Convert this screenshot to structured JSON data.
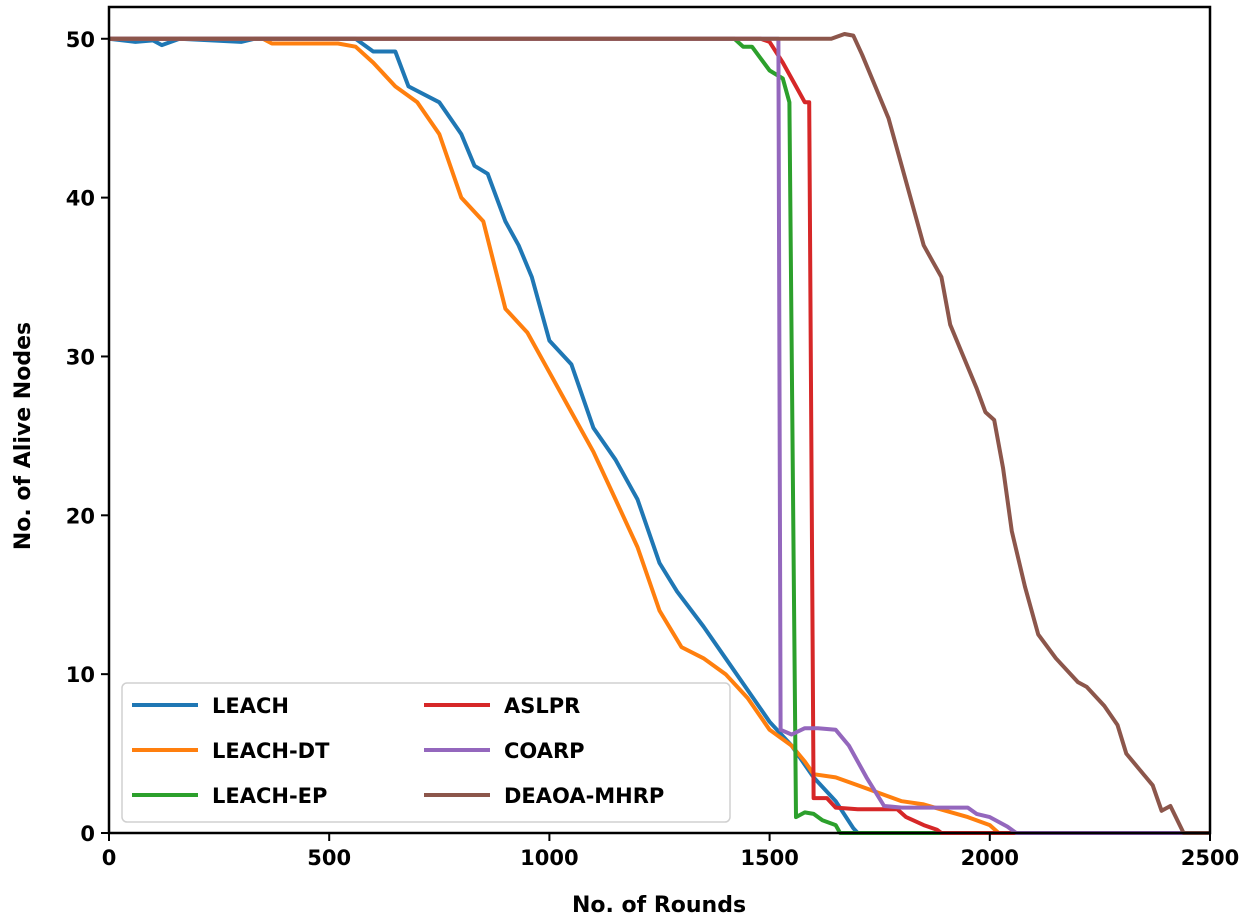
{
  "chart_data": {
    "type": "line",
    "title": "",
    "xlabel": "No. of Rounds",
    "ylabel": "No. of Alive Nodes",
    "xlim": [
      0,
      2500
    ],
    "ylim": [
      0,
      52
    ],
    "xticks": [
      0,
      500,
      1000,
      1500,
      2000,
      2500
    ],
    "yticks": [
      0,
      10,
      20,
      30,
      40,
      50
    ],
    "grid": false,
    "legend_position": "lower-left",
    "legend_columns": 2,
    "series": [
      {
        "name": "LEACH",
        "color": "#1f77b4",
        "x": [
          0,
          60,
          100,
          120,
          160,
          300,
          330,
          560,
          600,
          650,
          680,
          750,
          800,
          830,
          860,
          900,
          930,
          960,
          1000,
          1050,
          1100,
          1150,
          1200,
          1250,
          1290,
          1350,
          1400,
          1450,
          1500,
          1550,
          1600,
          1650,
          1690,
          1700,
          2500
        ],
        "y": [
          50,
          49.8,
          49.9,
          49.6,
          50,
          49.8,
          50,
          50,
          49.2,
          49.2,
          47,
          46,
          44,
          42,
          41.5,
          38.5,
          37,
          35,
          31,
          29.5,
          25.5,
          23.5,
          21,
          17,
          15.2,
          13,
          11,
          9,
          7,
          5.5,
          3.5,
          2,
          0.3,
          0,
          0
        ]
      },
      {
        "name": "LEACH-DT",
        "color": "#ff7f0e",
        "x": [
          0,
          350,
          370,
          520,
          560,
          600,
          650,
          700,
          750,
          800,
          850,
          900,
          950,
          1000,
          1050,
          1100,
          1150,
          1200,
          1250,
          1300,
          1350,
          1400,
          1450,
          1500,
          1550,
          1580,
          1600,
          1650,
          1700,
          1750,
          1800,
          1850,
          1900,
          1950,
          2000,
          2020,
          2500
        ],
        "y": [
          50,
          50,
          49.7,
          49.7,
          49.5,
          48.5,
          47,
          46,
          44,
          40,
          38.5,
          33,
          31.5,
          29,
          26.5,
          24,
          21,
          18,
          14,
          11.7,
          11,
          10,
          8.5,
          6.5,
          5.5,
          4.5,
          3.7,
          3.5,
          3,
          2.5,
          2,
          1.8,
          1.4,
          1,
          0.5,
          0,
          0
        ]
      },
      {
        "name": "LEACH-EP",
        "color": "#2ca02c",
        "x": [
          0,
          1420,
          1440,
          1460,
          1500,
          1530,
          1545,
          1560,
          1580,
          1600,
          1620,
          1650,
          1660,
          2500
        ],
        "y": [
          50,
          50,
          49.5,
          49.5,
          48,
          47.5,
          46,
          1,
          1.3,
          1.2,
          0.8,
          0.5,
          0,
          0
        ]
      },
      {
        "name": "ASLPR",
        "color": "#d62728",
        "x": [
          0,
          1480,
          1500,
          1530,
          1560,
          1580,
          1590,
          1600,
          1630,
          1650,
          1700,
          1790,
          1810,
          1850,
          1880,
          1890,
          2500
        ],
        "y": [
          50,
          50,
          49.8,
          48.5,
          47,
          46,
          46,
          2.2,
          2.2,
          1.6,
          1.5,
          1.5,
          1,
          0.5,
          0.2,
          0,
          0
        ]
      },
      {
        "name": "COARP",
        "color": "#9467bd",
        "x": [
          0,
          1510,
          1520,
          1525,
          1550,
          1580,
          1610,
          1650,
          1680,
          1720,
          1760,
          1800,
          1900,
          1950,
          1970,
          2000,
          2040,
          2060,
          2500
        ],
        "y": [
          50,
          50,
          50,
          6.5,
          6.2,
          6.6,
          6.6,
          6.5,
          5.5,
          3.5,
          1.7,
          1.6,
          1.6,
          1.6,
          1.2,
          1,
          0.4,
          0,
          0
        ]
      },
      {
        "name": "DEAOA-MHRP",
        "color": "#8c564b",
        "x": [
          0,
          1640,
          1670,
          1690,
          1710,
          1740,
          1770,
          1800,
          1830,
          1850,
          1870,
          1890,
          1910,
          1940,
          1970,
          1990,
          2010,
          2030,
          2050,
          2080,
          2110,
          2150,
          2200,
          2220,
          2260,
          2290,
          2310,
          2340,
          2370,
          2390,
          2410,
          2440,
          2500
        ],
        "y": [
          50,
          50,
          50.3,
          50.2,
          49,
          47,
          45,
          42,
          39,
          37,
          36,
          35,
          32,
          30,
          28,
          26.5,
          26,
          23,
          19,
          15.5,
          12.5,
          11,
          9.5,
          9.2,
          8,
          6.8,
          5,
          4,
          3,
          1.4,
          1.7,
          0,
          0
        ]
      }
    ]
  }
}
